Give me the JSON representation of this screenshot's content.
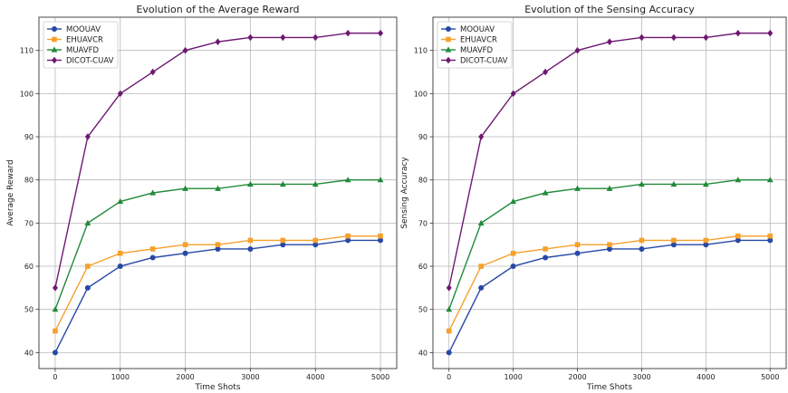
{
  "chart_data": [
    {
      "type": "line",
      "title": "Evolution of the Average Reward",
      "xlabel": "Time Shots",
      "ylabel": "Average Reward",
      "x": [
        0,
        500,
        1000,
        1500,
        2000,
        2500,
        3000,
        3500,
        4000,
        4500,
        5000
      ],
      "xticks": [
        0,
        1000,
        2000,
        3000,
        4000,
        5000
      ],
      "yticks": [
        40,
        50,
        60,
        70,
        80,
        90,
        100,
        110
      ],
      "xlim": [
        -250,
        5250
      ],
      "ylim": [
        36.3,
        117.7
      ],
      "grid": true,
      "legend": "top-left",
      "series": [
        {
          "name": "MOOUAV",
          "color": "#2748a5",
          "marker": "circle",
          "values": [
            40,
            55,
            60,
            62,
            63,
            64,
            64,
            65,
            65,
            66,
            66
          ]
        },
        {
          "name": "EHUAVCR",
          "color": "#f5a12c",
          "marker": "square",
          "values": [
            45,
            60,
            63,
            64,
            65,
            65,
            66,
            66,
            66,
            67,
            67
          ]
        },
        {
          "name": "MUAVFD",
          "color": "#218a3a",
          "marker": "triangle",
          "values": [
            50,
            70,
            75,
            77,
            78,
            78,
            79,
            79,
            79,
            80,
            80
          ]
        },
        {
          "name": "DICOT-CUAV",
          "color": "#6e1872",
          "marker": "diamond",
          "values": [
            55,
            90,
            100,
            105,
            110,
            112,
            113,
            113,
            113,
            114,
            114
          ]
        }
      ]
    },
    {
      "type": "line",
      "title": "Evolution of the Sensing Accuracy",
      "xlabel": "Time Shots",
      "ylabel": "Sensing Accuracy",
      "x": [
        0,
        500,
        1000,
        1500,
        2000,
        2500,
        3000,
        3500,
        4000,
        4500,
        5000
      ],
      "xticks": [
        0,
        1000,
        2000,
        3000,
        4000,
        5000
      ],
      "yticks": [
        40,
        50,
        60,
        70,
        80,
        90,
        100,
        110
      ],
      "xlim": [
        -250,
        5250
      ],
      "ylim": [
        36.3,
        117.7
      ],
      "grid": true,
      "legend": "top-left",
      "series": [
        {
          "name": "MOOUAV",
          "color": "#2748a5",
          "marker": "circle",
          "values": [
            40,
            55,
            60,
            62,
            63,
            64,
            64,
            65,
            65,
            66,
            66
          ]
        },
        {
          "name": "EHUAVCR",
          "color": "#f5a12c",
          "marker": "square",
          "values": [
            45,
            60,
            63,
            64,
            65,
            65,
            66,
            66,
            66,
            67,
            67
          ]
        },
        {
          "name": "MUAVFD",
          "color": "#218a3a",
          "marker": "triangle",
          "values": [
            50,
            70,
            75,
            77,
            78,
            78,
            79,
            79,
            79,
            80,
            80
          ]
        },
        {
          "name": "DICOT-CUAV",
          "color": "#6e1872",
          "marker": "diamond",
          "values": [
            55,
            90,
            100,
            105,
            110,
            112,
            113,
            113,
            113,
            114,
            114
          ]
        }
      ]
    }
  ]
}
